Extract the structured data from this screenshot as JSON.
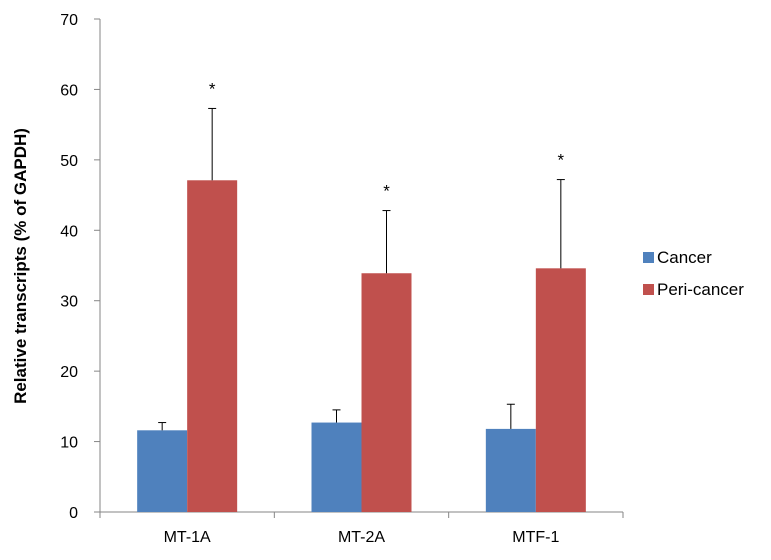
{
  "chart_data": {
    "type": "bar",
    "title": "",
    "xlabel": "",
    "ylabel": "Relative transcripts (% of GAPDH)",
    "ylim": [
      0,
      70
    ],
    "yticks": [
      0,
      10,
      20,
      30,
      40,
      50,
      60,
      70
    ],
    "categories": [
      "MT-1A",
      "MT-2A",
      "MTF-1"
    ],
    "series": [
      {
        "name": "Cancer",
        "color": "#4F81BD",
        "values": [
          11.6,
          12.7,
          11.8
        ],
        "errors": [
          1.1,
          1.8,
          3.5
        ],
        "significance": [
          "",
          "",
          ""
        ]
      },
      {
        "name": "Peri-cancer",
        "color": "#C0504D",
        "values": [
          47.1,
          33.9,
          34.6
        ],
        "errors": [
          10.2,
          8.9,
          12.6
        ],
        "significance": [
          "*",
          "*",
          "*"
        ]
      }
    ],
    "legend_position": "right",
    "grid": false
  }
}
